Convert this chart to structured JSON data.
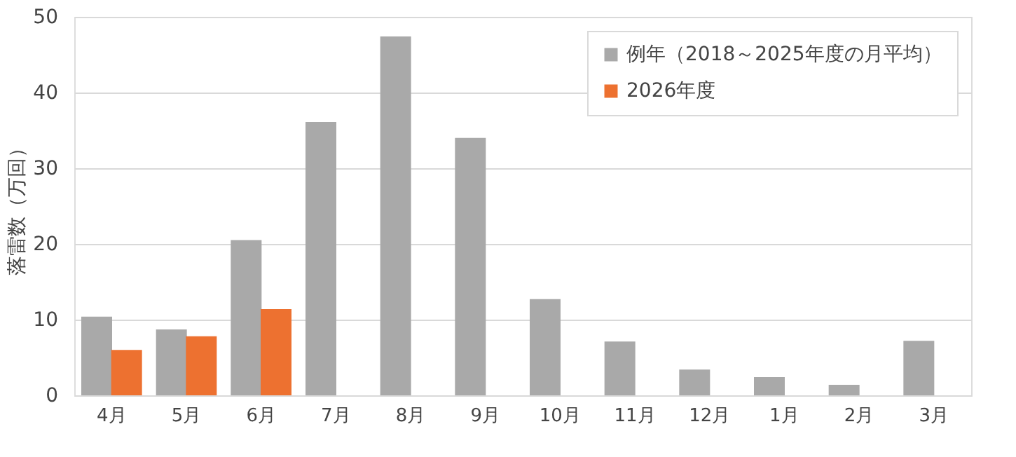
{
  "chart_data": {
    "type": "bar",
    "ylabel": "落雷数（万回）",
    "categories": [
      "4月",
      "5月",
      "6月",
      "7月",
      "8月",
      "9月",
      "10月",
      "11月",
      "12月",
      "1月",
      "2月",
      "3月"
    ],
    "series": [
      {
        "name": "例年（2018～2025年度の月平均）",
        "color": "#a9a9a9",
        "values": [
          10.4,
          8.7,
          20.5,
          36.1,
          47.4,
          34.0,
          12.7,
          7.1,
          3.4,
          2.4,
          1.4,
          7.2
        ]
      },
      {
        "name": "2026年度",
        "color": "#ed7130",
        "values": [
          6.0,
          7.8,
          11.4,
          null,
          null,
          null,
          null,
          null,
          null,
          null,
          null,
          null
        ]
      }
    ],
    "ylim": [
      0,
      50
    ],
    "yticks": [
      0,
      10,
      20,
      30,
      40,
      50
    ],
    "grid": "y",
    "legend": "top right"
  }
}
